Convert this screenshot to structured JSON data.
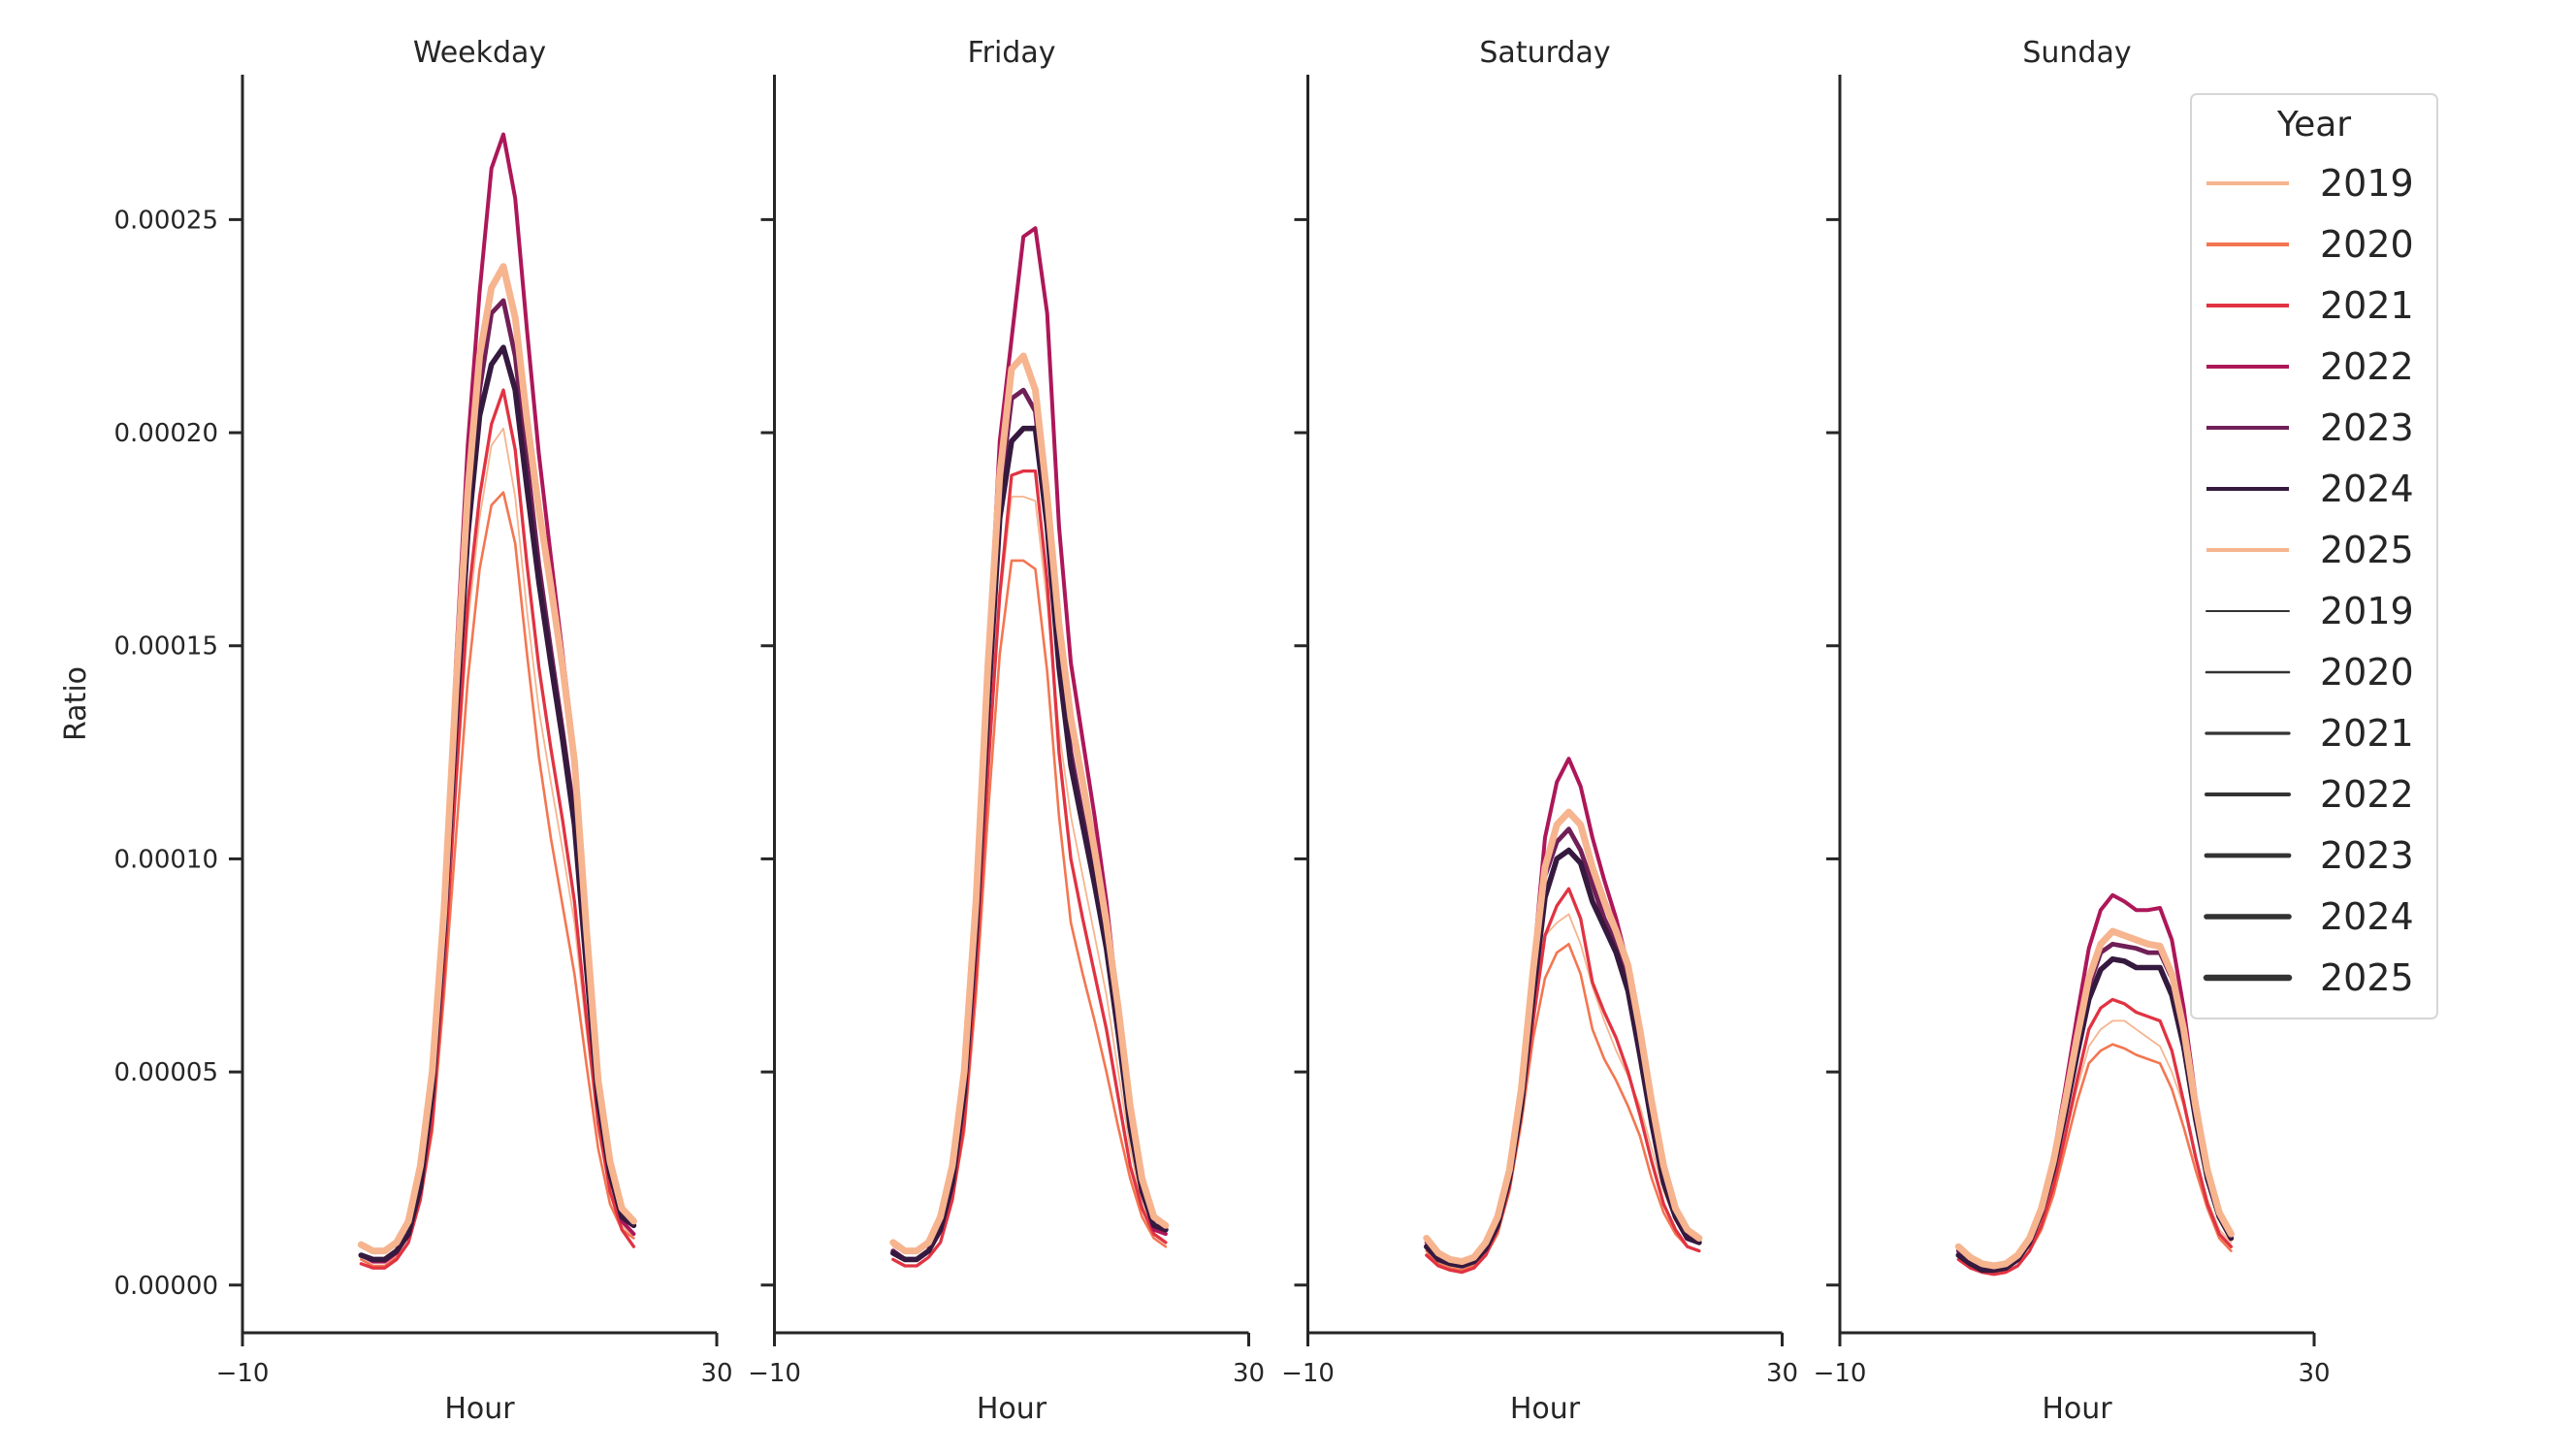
{
  "chart_data": {
    "type": "line",
    "values_unit": "1e-5",
    "ylabel": "Ratio",
    "xlabel": "Hour",
    "xlim": [
      -10,
      30
    ],
    "xticks": [
      "−10",
      "30"
    ],
    "xtick_values": [
      -10,
      30
    ],
    "ylim": [
      -1.12e-05,
      0.000284
    ],
    "yticks": [
      "0.00000",
      "0.00005",
      "0.00010",
      "0.00015",
      "0.00020",
      "0.00025"
    ],
    "ytick_values": [
      0,
      5e-05,
      0.0001,
      0.00015,
      0.0002,
      0.00025
    ],
    "grid": false,
    "legend": {
      "title": "Year",
      "placement": "top-right",
      "hue_entries": [
        "2019",
        "2020",
        "2021",
        "2022",
        "2023",
        "2024",
        "2025"
      ],
      "size_entries": [
        "2019",
        "2020",
        "2021",
        "2022",
        "2023",
        "2024",
        "2025"
      ]
    },
    "colors": {
      "2019": "#f6b48f",
      "2020": "#f37651",
      "2021": "#e13342",
      "2022": "#ad1759",
      "2023": "#701f57",
      "2024": "#35193e",
      "2025": "#f6b48f"
    },
    "hours": [
      0,
      1,
      2,
      3,
      4,
      5,
      6,
      7,
      8,
      9,
      10,
      11,
      12,
      13,
      14,
      15,
      16,
      17,
      18,
      19,
      20,
      21,
      22,
      23
    ],
    "panels": [
      {
        "title": "Weekday",
        "series": [
          {
            "name": "2019",
            "values": [
              0.9,
              0.75,
              0.75,
              0.95,
              1.5,
              2.6,
              4.0,
              7.5,
              11.5,
              15.5,
              18.0,
              19.7,
              20.1,
              18.5,
              15.8,
              13.5,
              11.8,
              10.2,
              8.5,
              6.0,
              3.6,
              2.2,
              1.4,
              1.1
            ]
          },
          {
            "name": "2020",
            "values": [
              0.6,
              0.45,
              0.45,
              0.65,
              1.0,
              2.0,
              3.6,
              6.8,
              10.5,
              14.2,
              16.8,
              18.3,
              18.6,
              17.4,
              14.8,
              12.4,
              10.5,
              8.9,
              7.3,
              5.2,
              3.2,
              1.9,
              1.3,
              1.1
            ]
          },
          {
            "name": "2021",
            "values": [
              0.5,
              0.4,
              0.4,
              0.6,
              1.0,
              2.0,
              3.8,
              7.3,
              11.8,
              16.0,
              18.5,
              20.2,
              21.0,
              19.6,
              16.9,
              14.5,
              12.6,
              10.9,
              9.0,
              6.3,
              3.8,
              2.2,
              1.3,
              0.9
            ]
          },
          {
            "name": "2022",
            "values": [
              0.7,
              0.55,
              0.55,
              0.75,
              1.2,
              2.2,
              4.4,
              8.4,
              14.6,
              19.7,
              23.3,
              26.2,
              27.0,
              25.5,
              22.4,
              19.5,
              17.1,
              14.8,
              12.5,
              8.4,
              4.6,
              2.6,
              1.5,
              1.2
            ]
          },
          {
            "name": "2023",
            "values": [
              0.7,
              0.6,
              0.6,
              0.8,
              1.2,
              2.3,
              4.5,
              8.4,
              13.5,
              18.0,
              21.0,
              22.8,
              23.1,
              21.8,
              19.3,
              16.9,
              14.9,
              13.0,
              11.0,
              7.6,
              4.3,
              2.6,
              1.6,
              1.4
            ]
          },
          {
            "name": "2024",
            "values": [
              0.7,
              0.6,
              0.6,
              0.8,
              1.2,
              2.3,
              4.5,
              8.3,
              13.2,
              17.6,
              20.4,
              21.6,
              22.0,
              21.0,
              18.7,
              16.5,
              14.6,
              12.8,
              10.8,
              7.5,
              4.3,
              2.6,
              1.6,
              1.4
            ]
          },
          {
            "name": "2025",
            "values": [
              0.95,
              0.8,
              0.8,
              1.0,
              1.5,
              2.8,
              5.0,
              8.8,
              14.0,
              18.6,
              21.8,
              23.4,
              23.9,
              22.7,
              20.3,
              18.2,
              16.4,
              14.5,
              12.3,
              8.4,
              4.8,
              2.9,
              1.8,
              1.5
            ]
          }
        ]
      },
      {
        "title": "Friday",
        "series": [
          {
            "name": "2019",
            "values": [
              0.9,
              0.75,
              0.75,
              0.95,
              1.5,
              2.6,
              4.0,
              7.5,
              12.0,
              16.0,
              18.5,
              18.5,
              18.4,
              16.0,
              13.0,
              11.0,
              9.6,
              8.2,
              6.8,
              5.0,
              3.2,
              1.9,
              1.2,
              1.0
            ]
          },
          {
            "name": "2020",
            "values": [
              0.6,
              0.45,
              0.45,
              0.65,
              1.0,
              2.0,
              3.6,
              6.8,
              11.0,
              14.8,
              17.0,
              17.0,
              16.8,
              14.4,
              11.0,
              8.5,
              7.3,
              6.2,
              5.0,
              3.7,
              2.5,
              1.6,
              1.1,
              0.9
            ]
          },
          {
            "name": "2021",
            "values": [
              0.6,
              0.45,
              0.45,
              0.65,
              1.0,
              2.0,
              3.8,
              7.3,
              12.0,
              16.2,
              19.0,
              19.1,
              19.1,
              16.5,
              12.5,
              10.0,
              8.6,
              7.3,
              6.0,
              4.4,
              2.8,
              1.8,
              1.2,
              1.0
            ]
          },
          {
            "name": "2022",
            "values": [
              0.8,
              0.6,
              0.6,
              0.8,
              1.3,
              2.3,
              4.5,
              8.4,
              14.5,
              19.8,
              22.2,
              24.6,
              24.8,
              22.8,
              17.8,
              14.6,
              12.8,
              11.0,
              9.0,
              6.5,
              4.0,
              2.2,
              1.3,
              1.2
            ]
          },
          {
            "name": "2023",
            "values": [
              0.8,
              0.6,
              0.6,
              0.8,
              1.3,
              2.4,
              4.6,
              8.5,
              14.0,
              18.5,
              20.8,
              21.0,
              20.5,
              18.0,
              14.8,
              12.5,
              11.0,
              9.6,
              8.0,
              6.0,
              3.8,
              2.2,
              1.4,
              1.3
            ]
          },
          {
            "name": "2024",
            "values": [
              0.75,
              0.6,
              0.6,
              0.8,
              1.3,
              2.4,
              4.5,
              8.3,
              13.5,
              18.0,
              19.8,
              20.1,
              20.1,
              17.8,
              14.5,
              12.2,
              10.8,
              9.4,
              7.9,
              5.9,
              3.7,
              2.2,
              1.4,
              1.3
            ]
          },
          {
            "name": "2025",
            "values": [
              1.0,
              0.8,
              0.8,
              1.0,
              1.6,
              2.8,
              5.0,
              9.0,
              14.5,
              19.0,
              21.5,
              21.8,
              21.0,
              18.5,
              15.5,
              13.3,
              11.8,
              10.2,
              8.5,
              6.5,
              4.2,
              2.5,
              1.6,
              1.4
            ]
          }
        ]
      },
      {
        "title": "Saturday",
        "series": [
          {
            "name": "2019",
            "values": [
              1.0,
              0.7,
              0.55,
              0.5,
              0.6,
              0.9,
              1.4,
              2.4,
              4.0,
              6.3,
              8.2,
              8.5,
              8.7,
              8.0,
              7.0,
              6.2,
              5.5,
              4.9,
              4.2,
              3.2,
              2.2,
              1.5,
              1.1,
              1.0
            ]
          },
          {
            "name": "2020",
            "values": [
              0.8,
              0.5,
              0.4,
              0.35,
              0.45,
              0.7,
              1.2,
              2.2,
              3.8,
              5.8,
              7.2,
              7.8,
              8.0,
              7.3,
              6.0,
              5.3,
              4.8,
              4.2,
              3.5,
              2.5,
              1.7,
              1.2,
              0.9,
              0.8
            ]
          },
          {
            "name": "2021",
            "values": [
              0.7,
              0.45,
              0.35,
              0.3,
              0.4,
              0.7,
              1.3,
              2.3,
              4.0,
              6.2,
              8.2,
              8.9,
              9.3,
              8.6,
              7.1,
              6.4,
              5.8,
              5.0,
              4.0,
              2.9,
              1.9,
              1.3,
              0.9,
              0.8
            ]
          },
          {
            "name": "2022",
            "values": [
              1.0,
              0.7,
              0.55,
              0.5,
              0.6,
              0.9,
              1.5,
              2.6,
              4.5,
              7.5,
              10.5,
              11.8,
              12.35,
              11.7,
              10.5,
              9.5,
              8.6,
              7.5,
              6.0,
              4.2,
              2.7,
              1.7,
              1.2,
              1.0
            ]
          },
          {
            "name": "2023",
            "values": [
              0.9,
              0.6,
              0.5,
              0.45,
              0.55,
              0.85,
              1.4,
              2.5,
              4.3,
              7.0,
              9.6,
              10.4,
              10.7,
              10.2,
              9.4,
              8.6,
              8.0,
              7.1,
              5.6,
              3.9,
              2.5,
              1.6,
              1.1,
              1.0
            ]
          },
          {
            "name": "2024",
            "values": [
              0.9,
              0.6,
              0.5,
              0.45,
              0.55,
              0.85,
              1.4,
              2.5,
              4.2,
              6.8,
              9.1,
              10.0,
              10.2,
              9.9,
              9.0,
              8.4,
              7.8,
              6.9,
              5.4,
              3.8,
              2.4,
              1.6,
              1.1,
              1.0
            ]
          },
          {
            "name": "2025",
            "values": [
              1.1,
              0.75,
              0.6,
              0.55,
              0.65,
              1.0,
              1.6,
              2.7,
              4.6,
              7.4,
              9.8,
              10.8,
              11.1,
              10.8,
              9.8,
              9.0,
              8.3,
              7.5,
              6.0,
              4.3,
              2.8,
              1.8,
              1.3,
              1.1
            ]
          }
        ]
      },
      {
        "title": "Sunday",
        "series": [
          {
            "name": "2019",
            "values": [
              0.9,
              0.6,
              0.45,
              0.4,
              0.45,
              0.6,
              0.9,
              1.5,
              2.4,
              3.5,
              4.6,
              5.6,
              6.0,
              6.2,
              6.2,
              6.0,
              5.8,
              5.6,
              5.0,
              4.2,
              3.0,
              2.0,
              1.3,
              1.0
            ]
          },
          {
            "name": "2020",
            "values": [
              0.6,
              0.4,
              0.3,
              0.25,
              0.3,
              0.45,
              0.8,
              1.3,
              2.1,
              3.2,
              4.3,
              5.2,
              5.5,
              5.65,
              5.55,
              5.4,
              5.3,
              5.2,
              4.6,
              3.7,
              2.7,
              1.8,
              1.1,
              0.8
            ]
          },
          {
            "name": "2021",
            "values": [
              0.6,
              0.4,
              0.3,
              0.25,
              0.3,
              0.45,
              0.8,
              1.4,
              2.3,
              3.5,
              4.8,
              6.0,
              6.5,
              6.7,
              6.6,
              6.4,
              6.3,
              6.2,
              5.5,
              4.3,
              3.0,
              1.9,
              1.2,
              0.9
            ]
          },
          {
            "name": "2022",
            "values": [
              0.8,
              0.5,
              0.35,
              0.35,
              0.4,
              0.6,
              1.0,
              1.8,
              3.0,
              4.6,
              6.3,
              7.9,
              8.8,
              9.15,
              9.0,
              8.8,
              8.8,
              8.85,
              8.1,
              6.5,
              4.4,
              2.8,
              1.7,
              1.1
            ]
          },
          {
            "name": "2023",
            "values": [
              0.8,
              0.5,
              0.35,
              0.35,
              0.4,
              0.6,
              1.0,
              1.7,
              2.8,
              4.2,
              5.7,
              7.0,
              7.8,
              8.0,
              7.95,
              7.9,
              7.8,
              7.8,
              7.2,
              5.9,
              4.1,
              2.6,
              1.6,
              1.1
            ]
          },
          {
            "name": "2024",
            "values": [
              0.7,
              0.5,
              0.35,
              0.35,
              0.4,
              0.6,
              1.0,
              1.7,
              2.7,
              4.0,
              5.4,
              6.7,
              7.4,
              7.65,
              7.6,
              7.45,
              7.45,
              7.45,
              6.8,
              5.6,
              3.9,
              2.5,
              1.6,
              1.1
            ]
          },
          {
            "name": "2025",
            "values": [
              0.9,
              0.65,
              0.5,
              0.45,
              0.5,
              0.7,
              1.1,
              1.8,
              2.9,
              4.3,
              5.8,
              7.2,
              8.0,
              8.3,
              8.2,
              8.1,
              8.0,
              7.95,
              7.3,
              6.0,
              4.2,
              2.7,
              1.7,
              1.2
            ]
          }
        ]
      }
    ]
  }
}
